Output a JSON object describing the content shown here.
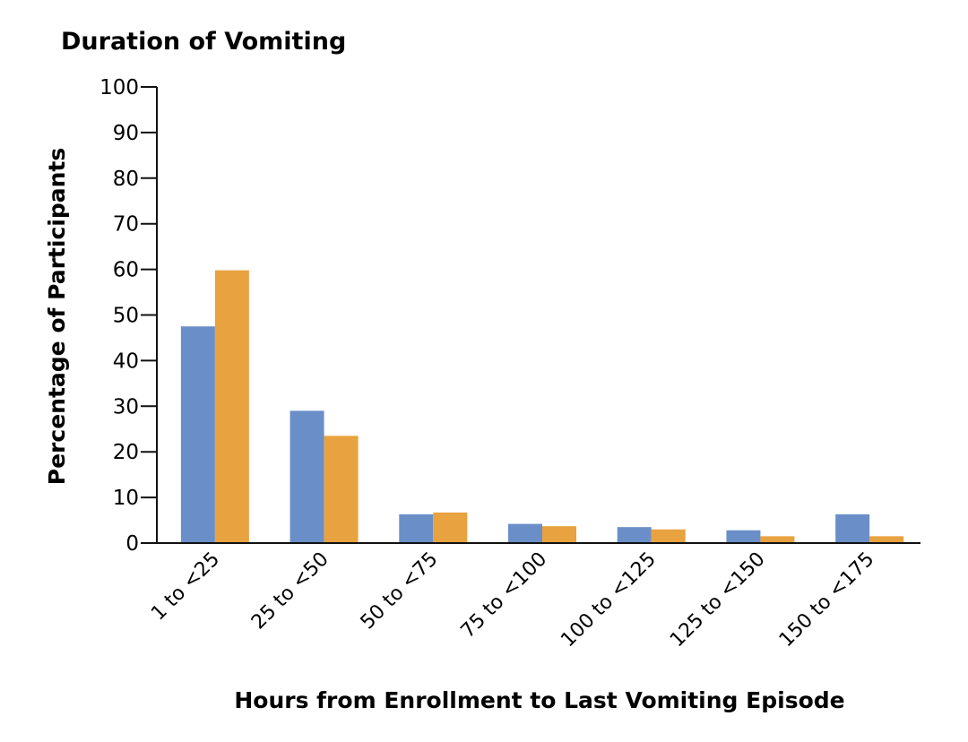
{
  "chart_data": {
    "type": "bar",
    "title": "Duration of Vomiting",
    "xlabel": "Hours from Enrollment to Last Vomiting Episode",
    "ylabel": "Percentage of Participants",
    "ylim": [
      0,
      100
    ],
    "yticks": [
      0,
      10,
      20,
      30,
      40,
      50,
      60,
      70,
      80,
      90,
      100
    ],
    "grid": false,
    "categories": [
      "1 to <25",
      "25 to <50",
      "50 to <75",
      "75 to <100",
      "100 to <125",
      "125 to <150",
      "150 to <175"
    ],
    "series": [
      {
        "color": "#6a8fc8",
        "values": [
          47.5,
          29,
          6.3,
          4.2,
          3.5,
          2.8,
          6.3
        ]
      },
      {
        "color": "#e8a23f",
        "values": [
          59.8,
          23.5,
          6.7,
          3.7,
          3.0,
          1.5,
          1.5
        ]
      }
    ]
  }
}
